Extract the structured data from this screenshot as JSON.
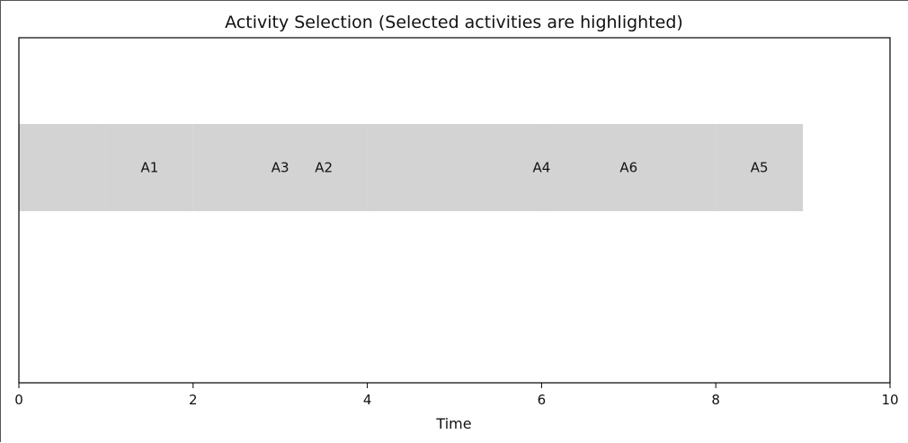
{
  "chart_data": {
    "type": "bar",
    "orientation": "horizontal-timeline",
    "title": "Activity Selection (Selected activities are highlighted)",
    "xlabel": "Time",
    "ylabel": "",
    "xlim": [
      0,
      10
    ],
    "xticks": [
      0,
      2,
      4,
      6,
      8,
      10
    ],
    "grid": false,
    "bar_color": "#d3d3d3",
    "activities": [
      {
        "label": "A1",
        "start": 1,
        "end": 2
      },
      {
        "label": "A3",
        "start": 2,
        "end": 4
      },
      {
        "label": "A2",
        "start": 3,
        "end": 4
      },
      {
        "label": "A4",
        "start": 5,
        "end": 7
      },
      {
        "label": "A6",
        "start": 6,
        "end": 8
      },
      {
        "label": "A5",
        "start": 8,
        "end": 9
      },
      {
        "label": "",
        "start": 0,
        "end": 1
      },
      {
        "label": "",
        "start": 4,
        "end": 5
      }
    ]
  }
}
